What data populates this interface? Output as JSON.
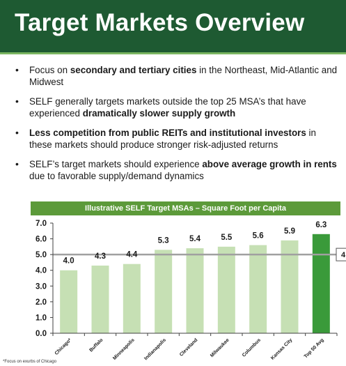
{
  "title": "Target Markets Overview",
  "bullets": [
    {
      "parts": [
        {
          "text": "Focus on ",
          "bold": false
        },
        {
          "text": "secondary and tertiary cities",
          "bold": true
        },
        {
          "text": " in the Northeast, Mid-Atlantic and Midwest",
          "bold": false
        }
      ]
    },
    {
      "parts": [
        {
          "text": "SELF generally targets markets outside the top 25 MSA’s that have experienced ",
          "bold": false
        },
        {
          "text": "dramatically slower supply growth",
          "bold": true
        }
      ]
    },
    {
      "parts": [
        {
          "text": "Less competition from public REITs and institutional investors",
          "bold": true
        },
        {
          "text": " in these markets should produce stronger risk-adjusted returns",
          "bold": false
        }
      ]
    },
    {
      "parts": [
        {
          "text": "SELF’s target markets should experience ",
          "bold": false
        },
        {
          "text": "above average growth in rents",
          "bold": true
        },
        {
          "text": " due to favorable supply/demand dynamics",
          "bold": false
        }
      ]
    }
  ],
  "chart_data": {
    "type": "bar",
    "title": "Illustrative SELF Target MSAs – Square Foot per Capita",
    "categories": [
      "Chicago*",
      "Buffalo",
      "Minneapolis",
      "Indianapolis",
      "Cleveland",
      "Milwaukee",
      "Columbus",
      "Kansas City",
      "Top 50 Avg"
    ],
    "values": [
      4.0,
      4.3,
      4.4,
      5.3,
      5.4,
      5.5,
      5.6,
      5.9,
      6.3
    ],
    "value_labels": [
      "4.0",
      "4.3",
      "4.4",
      "5.3",
      "5.4",
      "5.5",
      "5.6",
      "5.9",
      "6.3"
    ],
    "ylim": [
      0.0,
      7.0
    ],
    "yticks": [
      "0.0",
      "1.0",
      "2.0",
      "3.0",
      "4.0",
      "5.0",
      "6.0",
      "7.0"
    ],
    "reference_line": {
      "value": 5.0,
      "label": "4"
    },
    "grid": false,
    "colors": {
      "bar": "#c6e0b4",
      "highlight_bar": "#3a9a3a",
      "highlight_category": "Top 50 Avg",
      "reference_line": "#a0a0a0"
    },
    "footnote": "*Focus on exurbs of Chicago"
  }
}
